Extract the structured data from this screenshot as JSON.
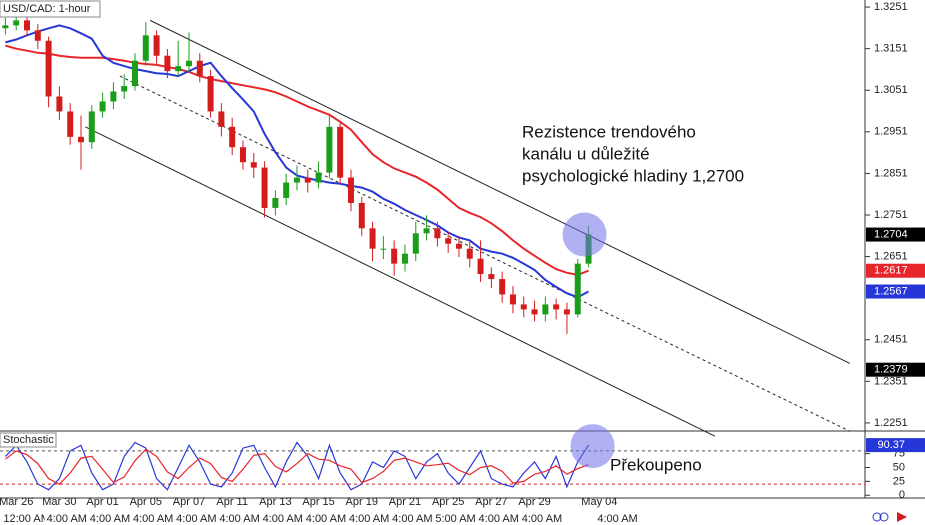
{
  "chart_data": [
    {
      "type": "candlestick",
      "title": "USD/CAD: 1-hour",
      "categories": [
        null,
        "Mar 26",
        null,
        null,
        null,
        "Mar 30",
        null,
        null,
        null,
        "Apr 01",
        null,
        null,
        null,
        "Apr 05",
        null,
        null,
        null,
        "Apr 07",
        null,
        null,
        null,
        "Apr 11",
        null,
        null,
        null,
        "Apr 13",
        null,
        null,
        null,
        "Apr 15",
        null,
        null,
        null,
        "Apr 19",
        null,
        null,
        null,
        "Apr 21",
        null,
        null,
        null,
        "Apr 25",
        null,
        null,
        null,
        "Apr 27",
        null,
        null,
        null,
        "Apr 29",
        null,
        null,
        null,
        null,
        null,
        "May 04"
      ],
      "time_labels": [
        "12:00 AM",
        null,
        null,
        null,
        "4:00 AM",
        null,
        null,
        null,
        "4:00 AM",
        null,
        null,
        null,
        "4:00 AM",
        null,
        null,
        null,
        "4:00 AM",
        null,
        null,
        null,
        "4:00 AM",
        null,
        null,
        null,
        "4:00 AM",
        null,
        null,
        null,
        "4:00 AM",
        null,
        null,
        null,
        "4:00 AM",
        null,
        null,
        null,
        "4:00 AM",
        null,
        null,
        null,
        "5:00 AM",
        null,
        null,
        null,
        "4:00 AM",
        null,
        null,
        null,
        "4:00 AM",
        null,
        null,
        null,
        null,
        null,
        null,
        "4:00 AM"
      ],
      "xlim": [
        -0.5,
        79.6
      ],
      "open": [
        1.32,
        1.3207,
        1.3219,
        1.3195,
        1.317,
        1.3036,
        1.3,
        1.2939,
        1.2926,
        1.3,
        1.3024,
        1.3048,
        1.3061,
        1.3122,
        1.3183,
        1.3134,
        1.3097,
        1.3109,
        1.3122,
        1.3085,
        1.3,
        1.2963,
        1.2914,
        1.2878,
        1.2865,
        1.2768,
        1.2792,
        1.2829,
        1.2841,
        1.2829,
        1.2853,
        1.2963,
        1.2841,
        1.278,
        1.2719,
        1.267,
        1.267,
        1.2634,
        1.2658,
        1.2707,
        1.2719,
        1.2695,
        1.2682,
        1.267,
        1.2646,
        1.2609,
        1.2597,
        1.256,
        1.2536,
        1.2524,
        1.2512,
        1.2536,
        1.2524,
        1.2512,
        1.2634,
        null
      ],
      "high": [
        1.3225,
        1.324,
        1.323,
        1.321,
        1.318,
        1.306,
        1.302,
        1.299,
        1.3015,
        1.3045,
        1.307,
        1.309,
        1.314,
        1.3215,
        1.3195,
        1.315,
        1.317,
        1.319,
        1.314,
        1.31,
        1.302,
        1.2985,
        1.293,
        1.29,
        1.288,
        1.281,
        1.285,
        1.287,
        1.286,
        1.288,
        1.2995,
        1.2975,
        1.286,
        1.2795,
        1.2735,
        1.27,
        1.269,
        1.268,
        1.2735,
        1.275,
        1.2735,
        1.271,
        1.27,
        1.269,
        1.269,
        1.2625,
        1.2615,
        1.258,
        1.2555,
        1.2545,
        1.2555,
        1.255,
        1.254,
        1.2645,
        1.2725,
        null
      ],
      "low": [
        1.3185,
        1.3195,
        1.318,
        1.315,
        1.301,
        1.298,
        1.292,
        1.286,
        1.291,
        1.2985,
        1.3005,
        1.303,
        1.305,
        1.311,
        1.3115,
        1.308,
        1.3085,
        1.3095,
        1.307,
        1.2985,
        1.294,
        1.2895,
        1.286,
        1.284,
        1.2745,
        1.275,
        1.2775,
        1.281,
        1.2805,
        1.2815,
        1.284,
        1.2825,
        1.276,
        1.27,
        1.264,
        1.2645,
        1.2605,
        1.2615,
        1.264,
        1.269,
        1.2675,
        1.266,
        1.265,
        1.2625,
        1.259,
        1.2575,
        1.254,
        1.2515,
        1.2505,
        1.2495,
        1.2495,
        1.25,
        1.2465,
        1.2505,
        1.2625,
        null
      ],
      "close": [
        1.3207,
        1.3219,
        1.3195,
        1.317,
        1.3036,
        1.3,
        1.2939,
        1.2926,
        1.3,
        1.3024,
        1.3048,
        1.3061,
        1.3122,
        1.3183,
        1.3134,
        1.3097,
        1.3109,
        1.3122,
        1.3085,
        1.3,
        1.2963,
        1.2914,
        1.2878,
        1.2865,
        1.2768,
        1.2792,
        1.2829,
        1.2841,
        1.2829,
        1.2853,
        1.2963,
        1.2841,
        1.278,
        1.2719,
        1.267,
        1.267,
        1.2634,
        1.2658,
        1.2707,
        1.2719,
        1.2695,
        1.2682,
        1.267,
        1.2646,
        1.2609,
        1.2597,
        1.256,
        1.2536,
        1.2524,
        1.2512,
        1.2536,
        1.2524,
        1.2512,
        1.2634,
        1.2704,
        null
      ],
      "up_color": "#1a9e1a",
      "down_color": "#d41c1c",
      "ylim": [
        1.2234,
        1.3268
      ],
      "yticks": [
        1.2251,
        1.2351,
        1.2451,
        1.2651,
        1.2751,
        1.2851,
        1.2951,
        1.3051,
        1.3151,
        1.3251
      ],
      "overlays": [
        {
          "color": "#e8252b",
          "values": [
            1.3158,
            1.3151,
            1.3146,
            1.3141,
            1.3139,
            1.3134,
            1.3131,
            1.3129,
            1.3129,
            1.3129,
            1.3126,
            1.3122,
            1.3117,
            1.3114,
            1.3112,
            1.3107,
            1.3102,
            1.3095,
            1.3085,
            1.3078,
            1.3073,
            1.3068,
            1.3063,
            1.3058,
            1.3053,
            1.3046,
            1.3036,
            1.3024,
            1.3012,
            1.3002,
            1.2992,
            1.2975,
            1.2956,
            1.2926,
            1.2897,
            1.2878,
            1.2863,
            1.2853,
            1.2843,
            1.2829,
            1.2812,
            1.279,
            1.2768,
            1.2756,
            1.2746,
            1.2731,
            1.2712,
            1.269,
            1.267,
            1.2653,
            1.2636,
            1.2621,
            1.2612,
            1.2607,
            1.2617,
            null
          ]
        },
        {
          "color": "#2637d9",
          "values": [
            1.3166,
            1.3173,
            1.3183,
            1.3192,
            1.32,
            1.3207,
            1.32,
            1.3188,
            1.3175,
            1.3134,
            1.3117,
            1.3109,
            1.3102,
            1.3097,
            1.3092,
            1.309,
            1.3085,
            1.3097,
            1.3109,
            1.3117,
            1.3085,
            1.3056,
            1.3029,
            1.3,
            1.2946,
            1.2902,
            1.2865,
            1.2846,
            1.2839,
            1.2834,
            1.2829,
            1.2826,
            1.2821,
            1.2817,
            1.2807,
            1.279,
            1.2778,
            1.2763,
            1.2751,
            1.2739,
            1.2726,
            1.2709,
            1.2697,
            1.269,
            1.267,
            1.2663,
            1.2658,
            1.2648,
            1.2634,
            1.2619,
            1.2595,
            1.2578,
            1.2563,
            1.2553,
            1.2567,
            null
          ]
        }
      ],
      "trendlines": [
        {
          "style": "solid",
          "start": [
            13.4,
            1.3219
          ],
          "end": [
            78.2,
            1.2394
          ]
        },
        {
          "style": "solid",
          "start": [
            7.4,
            1.2963
          ],
          "end": [
            65.7,
            1.2219
          ]
        },
        {
          "style": "dashed",
          "start": [
            10.6,
            1.3085
          ],
          "end": [
            78.2,
            1.2231
          ]
        }
      ],
      "price_markers": [
        {
          "value": 1.2704,
          "color": "#000000"
        },
        {
          "value": 1.2617,
          "color": "#e8252b"
        },
        {
          "value": 1.2567,
          "color": "#2637d9"
        },
        {
          "value": 1.2379,
          "color": "#000000"
        }
      ],
      "annotation": [
        "Rezistence trendového",
        "kanálu u důležité",
        "psychologické hladiny 1,2700"
      ]
    },
    {
      "type": "stochastic",
      "title": "Stochastic",
      "series": [
        {
          "color": "#2637d9",
          "values": [
            70,
            90,
            60,
            20,
            10,
            30,
            80,
            90,
            40,
            10,
            20,
            70,
            95,
            85,
            30,
            10,
            50,
            90,
            60,
            20,
            15,
            40,
            85,
            90,
            50,
            15,
            60,
            95,
            70,
            30,
            90,
            40,
            10,
            20,
            60,
            50,
            80,
            70,
            30,
            60,
            75,
            40,
            20,
            50,
            80,
            30,
            20,
            15,
            40,
            60,
            30,
            70,
            15,
            60,
            90.37,
            null
          ]
        },
        {
          "color": "#e8252b",
          "values": [
            65,
            80,
            73,
            57,
            30,
            20,
            40,
            67,
            70,
            47,
            23,
            33,
            62,
            83,
            70,
            42,
            30,
            50,
            67,
            57,
            32,
            25,
            47,
            72,
            75,
            52,
            42,
            57,
            75,
            65,
            63,
            53,
            47,
            23,
            30,
            43,
            63,
            67,
            60,
            53,
            55,
            58,
            45,
            37,
            50,
            53,
            43,
            22,
            25,
            38,
            43,
            53,
            38,
            48,
            55,
            null
          ]
        }
      ],
      "ylim": [
        -5,
        114
      ],
      "yticks": [
        0,
        25,
        50,
        75
      ],
      "levels": [
        80,
        20
      ],
      "current": {
        "value": 90.37,
        "color": "#2637d9"
      },
      "annotation": "Překoupeno"
    }
  ]
}
